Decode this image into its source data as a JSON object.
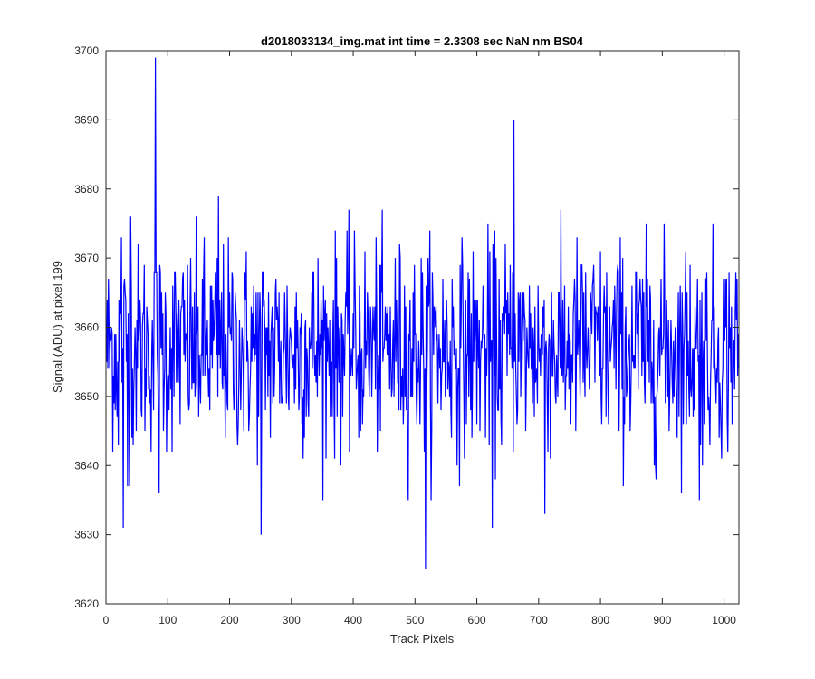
{
  "chart_data": {
    "type": "line",
    "title": "d2018033134_img.mat int time = 2.3308 sec  NaN nm BS04",
    "xlabel": "Track Pixels",
    "ylabel": "Signal (ADU) at pixel 199",
    "xlim": [
      0,
      1024
    ],
    "ylim": [
      3620,
      3700
    ],
    "xticks": [
      0,
      100,
      200,
      300,
      400,
      500,
      600,
      700,
      800,
      900,
      1000
    ],
    "yticks": [
      3620,
      3630,
      3640,
      3650,
      3660,
      3670,
      3680,
      3690,
      3700
    ],
    "grid": false,
    "legend": "none",
    "series": [
      {
        "color": "#0000ff",
        "n_points": 1024,
        "mean": 3657,
        "std": 7.5,
        "notable_points": [
          {
            "x": 20,
            "y": 3643
          },
          {
            "x": 25,
            "y": 3673
          },
          {
            "x": 28,
            "y": 3631
          },
          {
            "x": 35,
            "y": 3637
          },
          {
            "x": 40,
            "y": 3676
          },
          {
            "x": 80,
            "y": 3699
          },
          {
            "x": 86,
            "y": 3636
          },
          {
            "x": 182,
            "y": 3679
          },
          {
            "x": 251,
            "y": 3630
          },
          {
            "x": 517,
            "y": 3625
          },
          {
            "x": 625,
            "y": 3631
          },
          {
            "x": 660,
            "y": 3690
          },
          {
            "x": 710,
            "y": 3633
          },
          {
            "x": 960,
            "y": 3635
          }
        ]
      }
    ]
  },
  "colors": {
    "line": "#0000ff",
    "axes": "#262626",
    "background": "#ffffff"
  }
}
